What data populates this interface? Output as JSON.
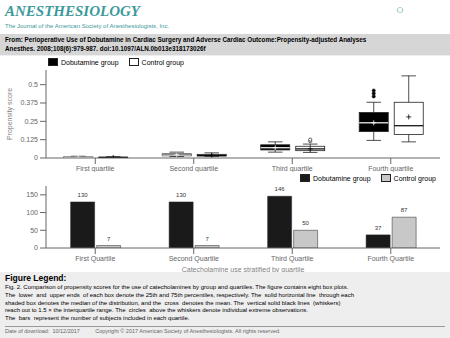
{
  "chart_data": [
    {
      "type": "box",
      "title": "ANESTHESIOLOGY",
      "subtitle": "The Journal of the American Society of Anesthesiologists, Inc.",
      "annotations": [
        "○",
        "From: Perioperative Use of Dobutamine in Cardiac Surgery and Adverse Cardiac Outcome:Propensity-adjusted Analyses",
        "Anesthes. 2008;108(6):979-987. doi:10.1097/ALN.0b013e318173026f",
        "Figure Legend:",
        "Fig. 2. Comparison of propensity scores for the use of catecholamines by group and quartiles. The figure contains eight box plots.\nThe  lower  and  upper ends  of each box denote the 25th and 75th percentiles, respectively. The  solid horizontal line  through each\nshaded box denotes the median of the distribution, and the  cross  denotes the mean. The  vertical solid black lines  (whiskers)\nreach out to 1.5 × the interquartile range. The  circles  above the whiskers denote individual extreme observations.\nThe  bars  represent the number of subjects included in each quartile.",
        "Date of download:  10/12/2017          Copyright © 2017 American Society of Anesthesiologists. All rights reserved."
      ],
      "ylabel": "Propensity score",
      "categories": [
        "First quartile",
        "Second quartile",
        "Third quartile",
        "Fourth quartile"
      ],
      "series": [
        {
          "name": "Dobutamine group",
          "color": "#000000",
          "values": [
            {
              "whislo": 0.001,
              "q1": 0.003,
              "med": 0.005,
              "q3": 0.008,
              "whishi": 0.012,
              "mean": 0.005,
              "fliers": []
            },
            {
              "whislo": 0.01,
              "q1": 0.015,
              "med": 0.02,
              "q3": 0.028,
              "whishi": 0.04,
              "mean": 0.022,
              "fliers": []
            },
            {
              "whislo": 0.04,
              "q1": 0.055,
              "med": 0.07,
              "q3": 0.09,
              "whishi": 0.11,
              "mean": 0.07,
              "fliers": []
            },
            {
              "whislo": 0.12,
              "q1": 0.18,
              "med": 0.24,
              "q3": 0.31,
              "whishi": 0.38,
              "mean": 0.24,
              "fliers": [
                0.42,
                0.44,
                0.46
              ]
            }
          ]
        },
        {
          "name": "Control group",
          "color": "#ffffff",
          "values": [
            {
              "whislo": 0.001,
              "q1": 0.002,
              "med": 0.004,
              "q3": 0.006,
              "whishi": 0.009,
              "mean": 0.004,
              "fliers": []
            },
            {
              "whislo": 0.01,
              "q1": 0.013,
              "med": 0.018,
              "q3": 0.025,
              "whishi": 0.035,
              "mean": 0.018,
              "fliers": []
            },
            {
              "whislo": 0.038,
              "q1": 0.05,
              "med": 0.062,
              "q3": 0.08,
              "whishi": 0.095,
              "mean": 0.062,
              "fliers": [
                0.115,
                0.125
              ]
            },
            {
              "whislo": 0.11,
              "q1": 0.16,
              "med": 0.22,
              "q3": 0.38,
              "whishi": 0.56,
              "mean": 0.28,
              "fliers": []
            }
          ]
        }
      ],
      "ylim": [
        0,
        0.6
      ],
      "yticks": [
        0,
        0.125,
        0.25,
        0.375,
        0.5
      ],
      "legend": "upper left"
    },
    {
      "type": "bar",
      "xlabel": "Catecholamine use stratified by quartile",
      "categories": [
        "First Quartile",
        "Second Quartile",
        "Third Quartile",
        "Fourth Quartile"
      ],
      "series": [
        {
          "name": "Dobutamine group",
          "color": "#1a1a1a",
          "values": [
            130,
            130,
            146,
            37
          ]
        },
        {
          "name": "Control group",
          "color": "#c8c8c8",
          "values": [
            7,
            7,
            50,
            87
          ]
        }
      ],
      "ylim": [
        0,
        175
      ],
      "yticks": [
        0,
        50,
        100,
        150
      ],
      "legend": "upper right",
      "data_labels": true
    }
  ]
}
